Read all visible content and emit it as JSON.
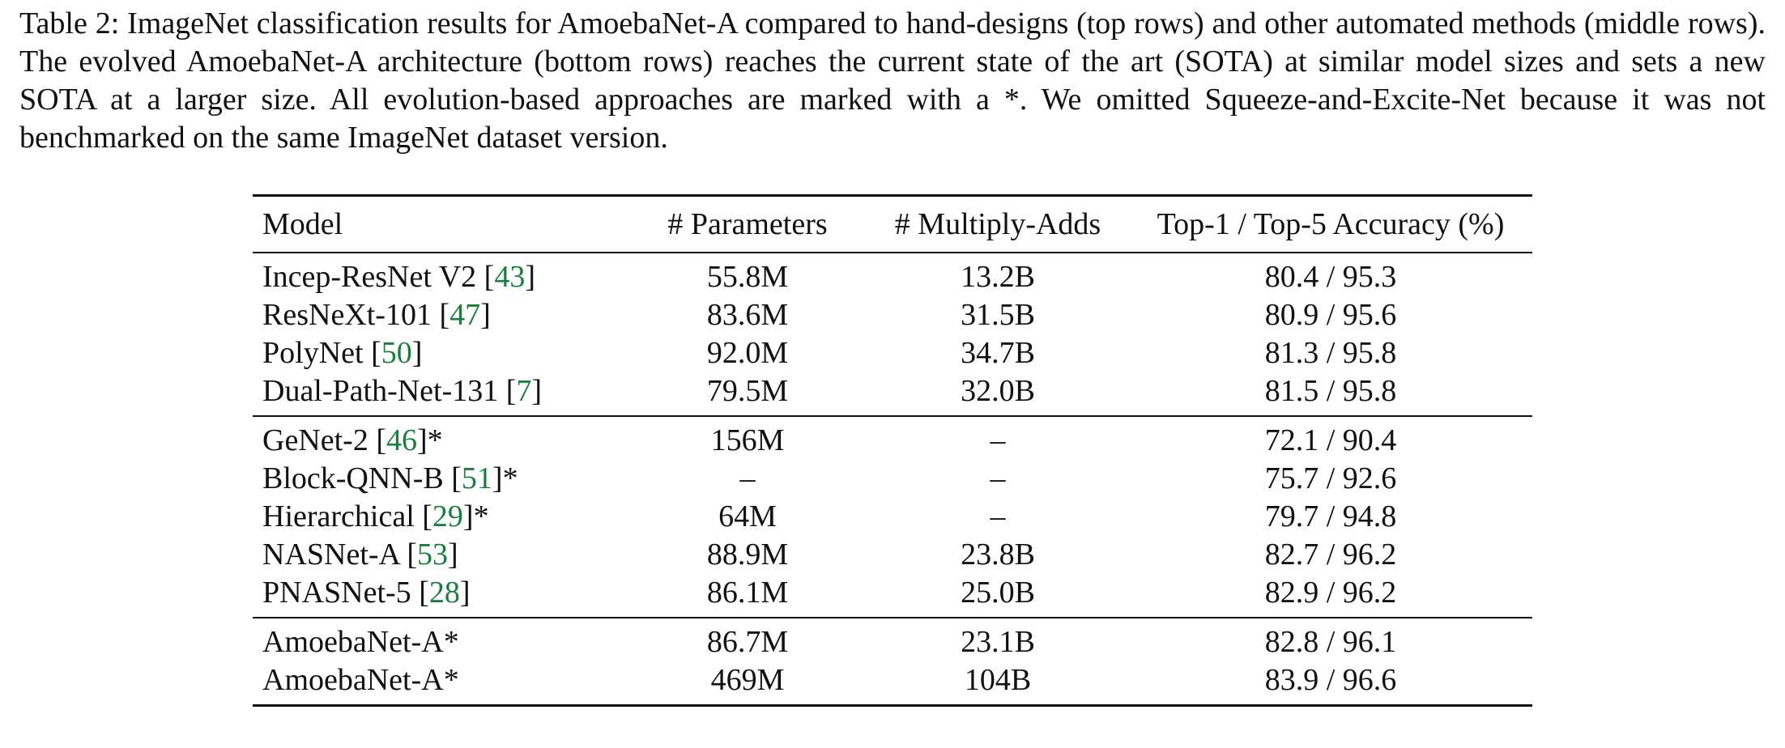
{
  "caption": "Table 2: ImageNet classification results for AmoebaNet-A compared to hand-designs (top rows) and other automated methods (middle rows). The evolved AmoebaNet-A architecture (bottom rows) reaches the current state of the art (SOTA) at similar model sizes and sets a new SOTA at a larger size. All evolution-based approaches are marked with a *. We omitted Squeeze-and-Excite-Net because it was not benchmarked on the same ImageNet dataset version.",
  "table": {
    "headers": [
      "Model",
      "# Parameters",
      "# Multiply-Adds",
      "Top-1 / Top-5 Accuracy (%)"
    ],
    "groups": [
      [
        {
          "model": "Incep-ResNet V2",
          "ref": "43",
          "suffix": "",
          "params": "55.8M",
          "madds": "13.2B",
          "acc": "80.4 / 95.3"
        },
        {
          "model": "ResNeXt-101",
          "ref": "47",
          "suffix": "",
          "params": "83.6M",
          "madds": "31.5B",
          "acc": "80.9 / 95.6"
        },
        {
          "model": "PolyNet",
          "ref": "50",
          "suffix": "",
          "params": "92.0M",
          "madds": "34.7B",
          "acc": "81.3 / 95.8"
        },
        {
          "model": "Dual-Path-Net-131",
          "ref": "7",
          "suffix": "",
          "params": "79.5M",
          "madds": "32.0B",
          "acc": "81.5 / 95.8"
        }
      ],
      [
        {
          "model": "GeNet-2",
          "ref": "46",
          "suffix": "*",
          "params": "156M",
          "madds": "–",
          "acc": "72.1 / 90.4"
        },
        {
          "model": "Block-QNN-B",
          "ref": "51",
          "suffix": "*",
          "params": "–",
          "madds": "–",
          "acc": "75.7 / 92.6"
        },
        {
          "model": "Hierarchical",
          "ref": "29",
          "suffix": "*",
          "params": "64M",
          "madds": "–",
          "acc": "79.7 / 94.8"
        },
        {
          "model": "NASNet-A",
          "ref": "53",
          "suffix": "",
          "params": "88.9M",
          "madds": "23.8B",
          "acc": "82.7 / 96.2"
        },
        {
          "model": "PNASNet-5",
          "ref": "28",
          "suffix": "",
          "params": "86.1M",
          "madds": "25.0B",
          "acc": "82.9 / 96.2"
        }
      ],
      [
        {
          "model": "AmoebaNet-A*",
          "ref": "",
          "suffix": "",
          "params": "86.7M",
          "madds": "23.1B",
          "acc": "82.8 / 96.1"
        },
        {
          "model": "AmoebaNet-A*",
          "ref": "",
          "suffix": "",
          "params": "469M",
          "madds": "104B",
          "acc": "83.9 / 96.6"
        }
      ]
    ]
  },
  "colors": {
    "text": "#111111",
    "citation": "#1a7f3c"
  }
}
